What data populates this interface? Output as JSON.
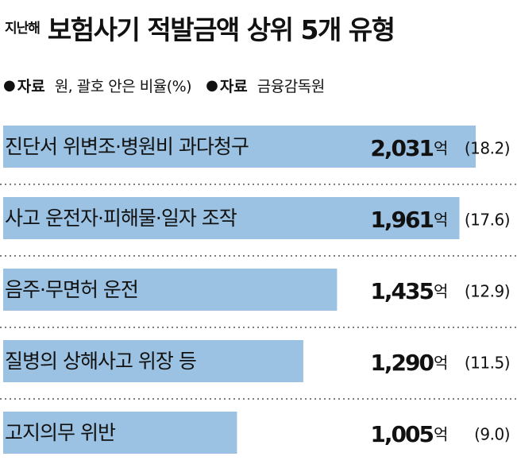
{
  "header": {
    "prefix": "지난해",
    "title": "보험사기 적발금액 상위 5개 유형"
  },
  "meta": {
    "unit_key": "자료",
    "unit_value": "원, 괄호 안은 비율(%)",
    "source_key": "자료",
    "source_value": "금융감독원"
  },
  "colors": {
    "bar": "#9bc2e3",
    "divider": "#555555"
  },
  "chart_data": {
    "type": "bar",
    "orientation": "horizontal",
    "categories": [
      "진단서 위변조·병원비 과다청구",
      "사고 운전자·피해물·일자 조작",
      "음주·무면허 운전",
      "질병의 상해사고 위장 등",
      "고지의무 위반"
    ],
    "values": [
      2031,
      1961,
      1435,
      1290,
      1005
    ],
    "value_labels": [
      "2,031",
      "1,961",
      "1,435",
      "1,290",
      "1,005"
    ],
    "value_unit": "억",
    "percent_labels": [
      "(18.2)",
      "(17.6)",
      "(12.9)",
      "(11.5)",
      "(9.0)"
    ],
    "percents": [
      18.2,
      17.6,
      12.9,
      11.5,
      9.0
    ],
    "title": "보험사기 적발금액 상위 5개 유형",
    "xlabel": "",
    "ylabel": "",
    "grid": false
  }
}
